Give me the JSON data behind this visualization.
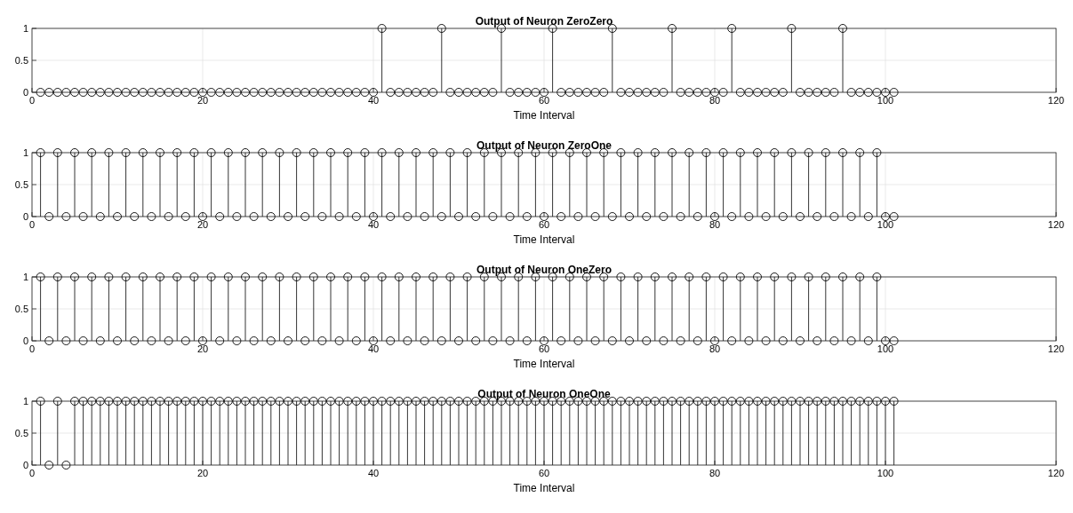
{
  "chart_data": [
    {
      "type": "lollipop",
      "title": "Output of Neuron ZeroZero",
      "xlabel": "Time Interval",
      "color": "#000000",
      "marker": "circle",
      "grid": true,
      "xlim": [
        0,
        120
      ],
      "xticks": [
        0,
        20,
        40,
        60,
        80,
        100,
        120
      ],
      "ylim": [
        0,
        1
      ],
      "yticks": [
        0,
        0.5,
        1
      ],
      "x": [
        1,
        2,
        3,
        4,
        5,
        6,
        7,
        8,
        9,
        10,
        11,
        12,
        13,
        14,
        15,
        16,
        17,
        18,
        19,
        20,
        21,
        22,
        23,
        24,
        25,
        26,
        27,
        28,
        29,
        30,
        31,
        32,
        33,
        34,
        35,
        36,
        37,
        38,
        39,
        40,
        41,
        42,
        43,
        44,
        45,
        46,
        47,
        48,
        49,
        50,
        51,
        52,
        53,
        54,
        55,
        56,
        57,
        58,
        59,
        60,
        61,
        62,
        63,
        64,
        65,
        66,
        67,
        68,
        69,
        70,
        71,
        72,
        73,
        74,
        75,
        76,
        77,
        78,
        79,
        80,
        81,
        82,
        83,
        84,
        85,
        86,
        87,
        88,
        89,
        90,
        91,
        92,
        93,
        94,
        95,
        96,
        97,
        98,
        99,
        100,
        101
      ],
      "values": [
        0,
        0,
        0,
        0,
        0,
        0,
        0,
        0,
        0,
        0,
        0,
        0,
        0,
        0,
        0,
        0,
        0,
        0,
        0,
        0,
        0,
        0,
        0,
        0,
        0,
        0,
        0,
        0,
        0,
        0,
        0,
        0,
        0,
        0,
        0,
        0,
        0,
        0,
        0,
        0,
        1,
        0,
        0,
        0,
        0,
        0,
        0,
        1,
        0,
        0,
        0,
        0,
        0,
        0,
        1,
        0,
        0,
        0,
        0,
        0,
        1,
        0,
        0,
        0,
        0,
        0,
        0,
        1,
        0,
        0,
        0,
        0,
        0,
        0,
        1,
        0,
        0,
        0,
        0,
        0,
        0,
        1,
        0,
        0,
        0,
        0,
        0,
        0,
        1,
        0,
        0,
        0,
        0,
        0,
        1,
        0,
        0,
        0,
        0,
        0,
        0
      ]
    },
    {
      "type": "lollipop",
      "title": "Output of Neuron ZeroOne",
      "xlabel": "Time Interval",
      "color": "#000000",
      "marker": "circle",
      "grid": true,
      "xlim": [
        0,
        120
      ],
      "xticks": [
        0,
        20,
        40,
        60,
        80,
        100,
        120
      ],
      "ylim": [
        0,
        1
      ],
      "yticks": [
        0,
        0.5,
        1
      ],
      "x": [
        1,
        2,
        3,
        4,
        5,
        6,
        7,
        8,
        9,
        10,
        11,
        12,
        13,
        14,
        15,
        16,
        17,
        18,
        19,
        20,
        21,
        22,
        23,
        24,
        25,
        26,
        27,
        28,
        29,
        30,
        31,
        32,
        33,
        34,
        35,
        36,
        37,
        38,
        39,
        40,
        41,
        42,
        43,
        44,
        45,
        46,
        47,
        48,
        49,
        50,
        51,
        52,
        53,
        54,
        55,
        56,
        57,
        58,
        59,
        60,
        61,
        62,
        63,
        64,
        65,
        66,
        67,
        68,
        69,
        70,
        71,
        72,
        73,
        74,
        75,
        76,
        77,
        78,
        79,
        80,
        81,
        82,
        83,
        84,
        85,
        86,
        87,
        88,
        89,
        90,
        91,
        92,
        93,
        94,
        95,
        96,
        97,
        98,
        99,
        100,
        101
      ],
      "values": [
        1,
        0,
        1,
        0,
        1,
        0,
        1,
        0,
        1,
        0,
        1,
        0,
        1,
        0,
        1,
        0,
        1,
        0,
        1,
        0,
        1,
        0,
        1,
        0,
        1,
        0,
        1,
        0,
        1,
        0,
        1,
        0,
        1,
        0,
        1,
        0,
        1,
        0,
        1,
        0,
        1,
        0,
        1,
        0,
        1,
        0,
        1,
        0,
        1,
        0,
        1,
        0,
        1,
        0,
        1,
        0,
        1,
        0,
        1,
        0,
        1,
        0,
        1,
        0,
        1,
        0,
        1,
        0,
        1,
        0,
        1,
        0,
        1,
        0,
        1,
        0,
        1,
        0,
        1,
        0,
        1,
        0,
        1,
        0,
        1,
        0,
        1,
        0,
        1,
        0,
        1,
        0,
        1,
        0,
        1,
        0,
        1,
        0,
        1,
        0,
        0
      ]
    },
    {
      "type": "lollipop",
      "title": "Output of Neuron OneZero",
      "xlabel": "Time Interval",
      "color": "#000000",
      "marker": "circle",
      "grid": true,
      "xlim": [
        0,
        120
      ],
      "xticks": [
        0,
        20,
        40,
        60,
        80,
        100,
        120
      ],
      "ylim": [
        0,
        1
      ],
      "yticks": [
        0,
        0.5,
        1
      ],
      "x": [
        1,
        2,
        3,
        4,
        5,
        6,
        7,
        8,
        9,
        10,
        11,
        12,
        13,
        14,
        15,
        16,
        17,
        18,
        19,
        20,
        21,
        22,
        23,
        24,
        25,
        26,
        27,
        28,
        29,
        30,
        31,
        32,
        33,
        34,
        35,
        36,
        37,
        38,
        39,
        40,
        41,
        42,
        43,
        44,
        45,
        46,
        47,
        48,
        49,
        50,
        51,
        52,
        53,
        54,
        55,
        56,
        57,
        58,
        59,
        60,
        61,
        62,
        63,
        64,
        65,
        66,
        67,
        68,
        69,
        70,
        71,
        72,
        73,
        74,
        75,
        76,
        77,
        78,
        79,
        80,
        81,
        82,
        83,
        84,
        85,
        86,
        87,
        88,
        89,
        90,
        91,
        92,
        93,
        94,
        95,
        96,
        97,
        98,
        99,
        100,
        101
      ],
      "values": [
        1,
        0,
        1,
        0,
        1,
        0,
        1,
        0,
        1,
        0,
        1,
        0,
        1,
        0,
        1,
        0,
        1,
        0,
        1,
        0,
        1,
        0,
        1,
        0,
        1,
        0,
        1,
        0,
        1,
        0,
        1,
        0,
        1,
        0,
        1,
        0,
        1,
        0,
        1,
        0,
        1,
        0,
        1,
        0,
        1,
        0,
        1,
        0,
        1,
        0,
        1,
        0,
        1,
        0,
        1,
        0,
        1,
        0,
        1,
        0,
        1,
        0,
        1,
        0,
        1,
        0,
        1,
        0,
        1,
        0,
        1,
        0,
        1,
        0,
        1,
        0,
        1,
        0,
        1,
        0,
        1,
        0,
        1,
        0,
        1,
        0,
        1,
        0,
        1,
        0,
        1,
        0,
        1,
        0,
        1,
        0,
        1,
        0,
        1,
        0,
        0
      ]
    },
    {
      "type": "lollipop",
      "title": "Output of Neuron OneOne",
      "xlabel": "Time Interval",
      "color": "#000000",
      "marker": "circle",
      "grid": true,
      "xlim": [
        0,
        120
      ],
      "xticks": [
        0,
        20,
        40,
        60,
        80,
        100,
        120
      ],
      "ylim": [
        0,
        1
      ],
      "yticks": [
        0,
        0.5,
        1
      ],
      "x": [
        1,
        2,
        3,
        4,
        5,
        6,
        7,
        8,
        9,
        10,
        11,
        12,
        13,
        14,
        15,
        16,
        17,
        18,
        19,
        20,
        21,
        22,
        23,
        24,
        25,
        26,
        27,
        28,
        29,
        30,
        31,
        32,
        33,
        34,
        35,
        36,
        37,
        38,
        39,
        40,
        41,
        42,
        43,
        44,
        45,
        46,
        47,
        48,
        49,
        50,
        51,
        52,
        53,
        54,
        55,
        56,
        57,
        58,
        59,
        60,
        61,
        62,
        63,
        64,
        65,
        66,
        67,
        68,
        69,
        70,
        71,
        72,
        73,
        74,
        75,
        76,
        77,
        78,
        79,
        80,
        81,
        82,
        83,
        84,
        85,
        86,
        87,
        88,
        89,
        90,
        91,
        92,
        93,
        94,
        95,
        96,
        97,
        98,
        99,
        100,
        101
      ],
      "values": [
        1,
        0,
        1,
        0,
        1,
        1,
        1,
        1,
        1,
        1,
        1,
        1,
        1,
        1,
        1,
        1,
        1,
        1,
        1,
        1,
        1,
        1,
        1,
        1,
        1,
        1,
        1,
        1,
        1,
        1,
        1,
        1,
        1,
        1,
        1,
        1,
        1,
        1,
        1,
        1,
        1,
        1,
        1,
        1,
        1,
        1,
        1,
        1,
        1,
        1,
        1,
        1,
        1,
        1,
        1,
        1,
        1,
        1,
        1,
        1,
        1,
        1,
        1,
        1,
        1,
        1,
        1,
        1,
        1,
        1,
        1,
        1,
        1,
        1,
        1,
        1,
        1,
        1,
        1,
        1,
        1,
        1,
        1,
        1,
        1,
        1,
        1,
        1,
        1,
        1,
        1,
        1,
        1,
        1,
        1,
        1,
        1,
        1,
        1,
        1,
        1
      ]
    }
  ]
}
